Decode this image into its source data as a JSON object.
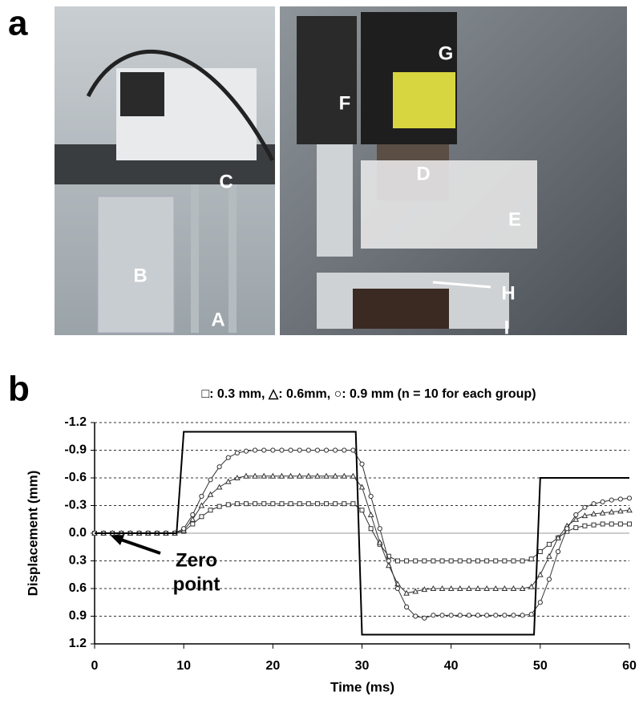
{
  "panel_a": {
    "label": "a",
    "photo_labels": [
      "C",
      "B",
      "A",
      "F",
      "G",
      "D",
      "E",
      "H",
      "I"
    ]
  },
  "chart_data": {
    "type": "line",
    "panel_label": "b",
    "subtitle": "□: 0.3 mm,  △: 0.6mm, ○: 0.9 mm (n = 10 for each group)",
    "x_label": "Time (ms)",
    "y_label": "Displacement (mm)",
    "annotation": [
      "Zero",
      "point"
    ],
    "xlim": [
      0,
      60
    ],
    "xticks": [
      0,
      10,
      20,
      30,
      40,
      50,
      60
    ],
    "ylim": [
      -1.2,
      1.2
    ],
    "invert_y": true,
    "yticks": [
      -1.2,
      -0.9,
      -0.6,
      -0.3,
      {
        "value": 0,
        "label": "0.0"
      },
      0.3,
      0.6,
      0.9,
      1.2
    ],
    "grid": true,
    "x": [
      0,
      1,
      2,
      3,
      4,
      5,
      6,
      7,
      8,
      9,
      10,
      11,
      12,
      13,
      14,
      15,
      16,
      17,
      18,
      19,
      20,
      21,
      22,
      23,
      24,
      25,
      26,
      27,
      28,
      29,
      30,
      31,
      32,
      33,
      34,
      35,
      36,
      37,
      38,
      39,
      40,
      41,
      42,
      43,
      44,
      45,
      46,
      47,
      48,
      49,
      50,
      51,
      52,
      53,
      54,
      55,
      56,
      57,
      58,
      59,
      60
    ],
    "series": [
      {
        "marker": "square",
        "color": "#333333",
        "values": [
          0,
          0,
          0,
          0,
          0,
          0,
          0,
          0,
          0,
          0,
          -0.02,
          -0.1,
          -0.18,
          -0.25,
          -0.29,
          -0.31,
          -0.32,
          -0.32,
          -0.32,
          -0.32,
          -0.32,
          -0.32,
          -0.32,
          -0.32,
          -0.32,
          -0.32,
          -0.32,
          -0.32,
          -0.32,
          -0.32,
          -0.25,
          -0.05,
          0.12,
          0.25,
          0.3,
          0.3,
          0.3,
          0.3,
          0.3,
          0.3,
          0.3,
          0.3,
          0.3,
          0.3,
          0.3,
          0.3,
          0.3,
          0.3,
          0.3,
          0.28,
          0.2,
          0.12,
          0.05,
          -0.02,
          -0.06,
          -0.08,
          -0.09,
          -0.1,
          -0.1,
          -0.1,
          -0.1
        ]
      },
      {
        "marker": "triangle",
        "color": "#333333",
        "values": [
          0,
          0,
          0,
          0,
          0,
          0,
          0,
          0,
          0,
          0,
          -0.03,
          -0.15,
          -0.3,
          -0.42,
          -0.5,
          -0.56,
          -0.6,
          -0.62,
          -0.62,
          -0.62,
          -0.62,
          -0.62,
          -0.62,
          -0.62,
          -0.62,
          -0.62,
          -0.62,
          -0.62,
          -0.62,
          -0.62,
          -0.5,
          -0.2,
          0.1,
          0.35,
          0.55,
          0.65,
          0.63,
          0.61,
          0.6,
          0.6,
          0.6,
          0.6,
          0.6,
          0.6,
          0.6,
          0.6,
          0.6,
          0.6,
          0.6,
          0.58,
          0.45,
          0.25,
          0.05,
          -0.08,
          -0.15,
          -0.19,
          -0.21,
          -0.22,
          -0.23,
          -0.24,
          -0.25
        ]
      },
      {
        "marker": "circle",
        "color": "#333333",
        "values": [
          0,
          0,
          0,
          0,
          0,
          0,
          0,
          0,
          0,
          0,
          -0.05,
          -0.2,
          -0.4,
          -0.58,
          -0.72,
          -0.82,
          -0.87,
          -0.89,
          -0.9,
          -0.9,
          -0.9,
          -0.9,
          -0.9,
          -0.9,
          -0.9,
          -0.9,
          -0.9,
          -0.9,
          -0.9,
          -0.9,
          -0.75,
          -0.4,
          -0.05,
          0.3,
          0.6,
          0.8,
          0.9,
          0.92,
          0.89,
          0.89,
          0.89,
          0.89,
          0.89,
          0.89,
          0.89,
          0.89,
          0.89,
          0.89,
          0.89,
          0.88,
          0.75,
          0.5,
          0.2,
          -0.05,
          -0.2,
          -0.28,
          -0.32,
          -0.34,
          -0.36,
          -0.37,
          -0.38
        ]
      },
      {
        "marker": "none",
        "color": "#000000",
        "x": [
          0,
          9.2,
          10,
          29.3,
          30,
          49.3,
          50,
          60
        ],
        "values": [
          0,
          0,
          -1.1,
          -1.1,
          1.1,
          1.1,
          -0.6,
          -0.6
        ]
      }
    ]
  }
}
